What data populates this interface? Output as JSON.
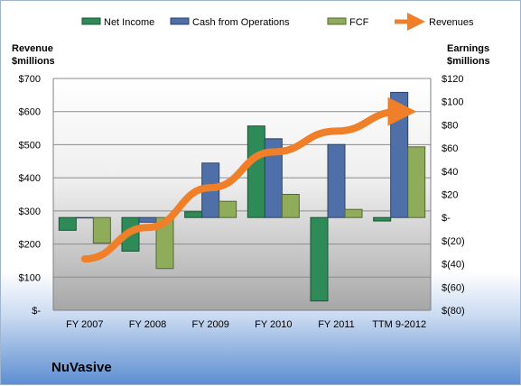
{
  "company": "NuVasive",
  "chart_data": {
    "type": "bar",
    "categories": [
      "FY 2007",
      "FY 2008",
      "FY 2009",
      "FY 2010",
      "FY 2011",
      "TTM 9-2012"
    ],
    "series": [
      {
        "name": "Net Income",
        "axis": "right",
        "type": "bar",
        "color": "#2e8b57",
        "values": [
          -11,
          -29,
          5,
          79,
          -72,
          -3
        ]
      },
      {
        "name": "Cash from Operations",
        "axis": "right",
        "type": "bar",
        "color": "#4f6fa8",
        "values": [
          0,
          -4,
          47,
          68,
          63,
          108
        ]
      },
      {
        "name": "FCF",
        "axis": "right",
        "type": "bar",
        "color": "#8fac5a",
        "values": [
          -22,
          -44,
          14,
          20,
          7,
          61
        ]
      },
      {
        "name": "Revenues",
        "axis": "left",
        "type": "line",
        "color": "#f07f2a",
        "values": [
          155,
          250,
          370,
          478,
          541,
          600
        ]
      }
    ],
    "left_axis": {
      "title_line1": "Revenue",
      "title_line2": "$millions",
      "min": 0,
      "max": 700,
      "ticks": [
        0,
        100,
        200,
        300,
        400,
        500,
        600,
        700
      ],
      "tick_labels": [
        "$-",
        "$100",
        "$200",
        "$300",
        "$400",
        "$500",
        "$600",
        "$700"
      ]
    },
    "right_axis": {
      "title_line1": "Earnings",
      "title_line2": "$millions",
      "min": -80,
      "max": 120,
      "ticks": [
        -80,
        -60,
        -40,
        -20,
        0,
        20,
        40,
        60,
        80,
        100,
        120
      ],
      "tick_labels": [
        "$(80)",
        "$(60)",
        "$(40)",
        "$(20)",
        "$-",
        "$20",
        "$40",
        "$60",
        "$80",
        "$100",
        "$120"
      ]
    },
    "legend_position": "top",
    "grid": true
  }
}
